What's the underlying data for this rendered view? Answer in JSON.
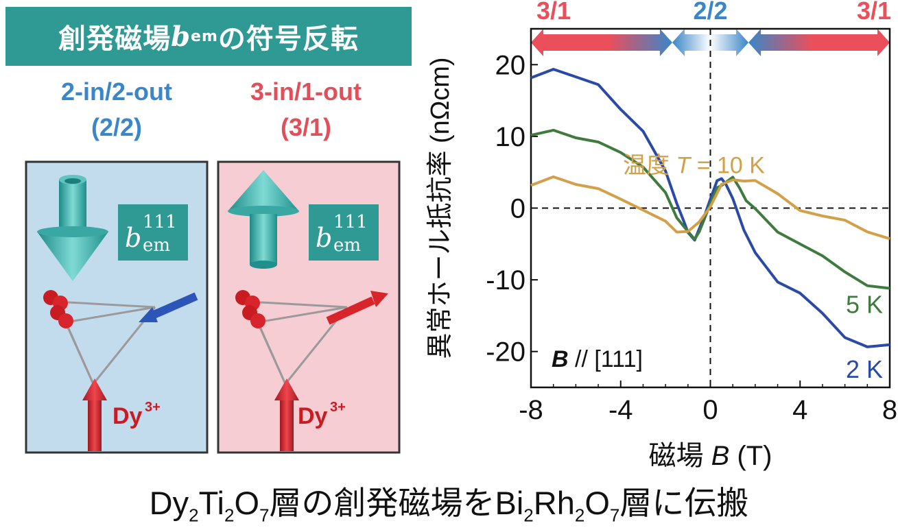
{
  "title": {
    "prefix": "創発磁場",
    "b": "b",
    "sub": "em",
    "suffix": "の符号反転"
  },
  "config_left": {
    "label": "2-in/2-out",
    "short": "(2/2)",
    "b_sym": "b",
    "b_sup": "111",
    "b_sub": "em",
    "ion": "Dy",
    "ion_sup": "3+"
  },
  "config_right": {
    "label": "3-in/1-out",
    "short": "(3/1)",
    "b_sym": "b",
    "b_sup": "111",
    "b_sub": "em",
    "ion": "Dy",
    "ion_sup": "3+"
  },
  "caption": {
    "p1": "Dy",
    "s1": "2",
    "p2": "Ti",
    "s2": "2",
    "p3": "O",
    "s3": "7",
    "p4": "層の創発磁場をBi",
    "s4": "2",
    "p5": "Rh",
    "s5": "2",
    "p6": "O",
    "s6": "7",
    "p7": "層に伝搬"
  },
  "colors": {
    "teal": "#2f9a93",
    "blue_label": "#3a86c8",
    "red_label": "#e0505a",
    "panel_blue": "#c3dced",
    "panel_pink": "#f6cdd2",
    "curve_2K": "#2a4aa5",
    "curve_5K": "#3f7a3f",
    "curve_10K": "#d3a04a"
  },
  "chart_data": {
    "type": "line",
    "xlabel_prefix": "磁場 ",
    "xlabel_var": "B",
    "xlabel_unit": " (T)",
    "ylabel": "異常ホール抵抗率 (nΩcm)",
    "xlim": [
      -8,
      8
    ],
    "ylim": [
      -25,
      25
    ],
    "xticks": [
      "-8",
      "-4",
      "0",
      "4",
      "8"
    ],
    "yticks": [
      "20",
      "10",
      "0",
      "-10",
      "-20"
    ],
    "regions_top": [
      {
        "label": "3/1",
        "from": -8,
        "to": -1.7
      },
      {
        "label": "2/2",
        "from": -1.7,
        "to": 1.7
      },
      {
        "label": "3/1",
        "from": 1.7,
        "to": 8
      }
    ],
    "annotation_field": "B",
    "annotation_rest": " // [111]",
    "temp_label_prefix": "温度 ",
    "temp_label_var": "T",
    "temp_label_value": " = 10 K",
    "series": [
      {
        "name": "2 K",
        "color": "#2a4aa5",
        "x": [
          -8,
          -7,
          -6,
          -5,
          -4,
          -3,
          -2,
          -1.5,
          -1.2,
          -1,
          -0.7,
          -0.5,
          -0.3,
          0,
          0.3,
          0.5,
          0.7,
          1,
          1.5,
          2,
          3,
          4,
          5,
          6,
          7,
          8
        ],
        "y": [
          18.5,
          19.5,
          18,
          17,
          14,
          11,
          5,
          1,
          -2,
          -3.5,
          -4.2,
          -3.2,
          -1.5,
          1.5,
          3.5,
          4.3,
          3.5,
          1,
          -3,
          -6,
          -10,
          -12,
          -15,
          -18,
          -19,
          -19
        ]
      },
      {
        "name": "5 K",
        "color": "#3f7a3f",
        "x": [
          -8,
          -7,
          -6,
          -5,
          -4,
          -3,
          -2,
          -1.5,
          -1,
          -0.7,
          -0.5,
          -0.3,
          0,
          0.3,
          0.5,
          1,
          1.3,
          1.6,
          2,
          3,
          4,
          5,
          6,
          7,
          8
        ],
        "y": [
          10.5,
          11,
          9.5,
          9,
          8,
          6,
          2,
          -1,
          -3.5,
          -4,
          -3.5,
          -2,
          1,
          2.5,
          3.2,
          4,
          3,
          1,
          0,
          -3,
          -5,
          -7,
          -9,
          -10.5,
          -11
        ]
      },
      {
        "name": "10 K",
        "color": "#d3a04a",
        "x": [
          -8,
          -7,
          -6,
          -5,
          -4,
          -3,
          -2,
          -1.5,
          -1,
          -0.5,
          0,
          0.5,
          1,
          1.5,
          2,
          3,
          4,
          5,
          6,
          7,
          8
        ],
        "y": [
          3.5,
          4.5,
          3,
          2.5,
          1.5,
          0,
          -2,
          -3,
          -3.5,
          -2,
          0.5,
          3,
          4,
          4,
          3.5,
          2,
          0,
          -1,
          -2,
          -3.5,
          -4
        ]
      }
    ]
  }
}
